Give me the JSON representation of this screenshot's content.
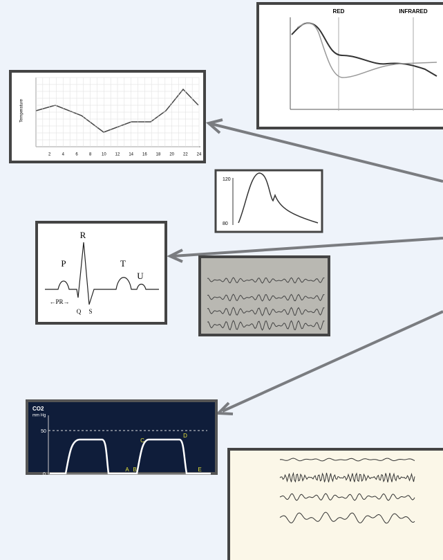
{
  "panels": {
    "spectrum": {
      "labels": [
        "RED",
        "INFRARED"
      ]
    },
    "temperature": {
      "axis_label": "Temperature",
      "x_ticks": [
        "2",
        "4",
        "6",
        "8",
        "10",
        "12",
        "14",
        "16",
        "18",
        "20",
        "22",
        "24"
      ]
    },
    "pressure": {
      "ticks": [
        "120",
        "80"
      ]
    },
    "ecg": {
      "labels": [
        "R",
        "P",
        "T",
        "U",
        "Q",
        "S",
        "←PR→"
      ]
    },
    "capnogram": {
      "title": "CO2",
      "unit": "mm Hg",
      "ticks": [
        "50",
        "0"
      ],
      "points": [
        "A",
        "B",
        "C",
        "D",
        "E"
      ]
    }
  }
}
